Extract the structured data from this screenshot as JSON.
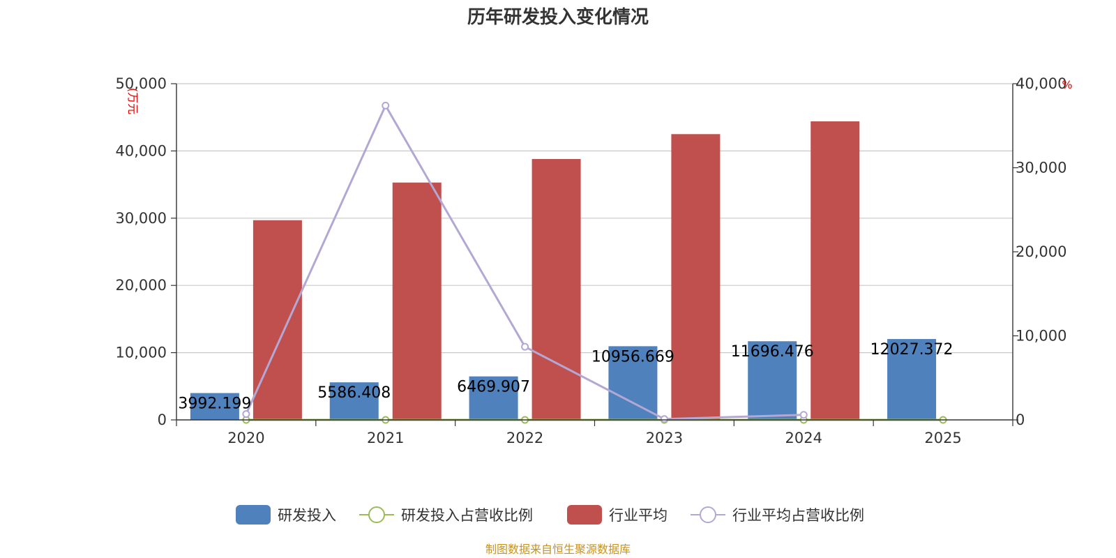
{
  "chart_data": {
    "type": "bar",
    "title": "历年研发投入变化情况",
    "categories": [
      "2020",
      "2021",
      "2022",
      "2023",
      "2024",
      "2025"
    ],
    "left_axis": {
      "unit_label": "(万元",
      "ylim": [
        0,
        50000
      ],
      "ticks": [
        "0",
        "10,000",
        "20,000",
        "30,000",
        "40,000",
        "50,000"
      ]
    },
    "right_axis": {
      "unit_label": "%",
      "ylim": [
        0,
        40000
      ],
      "ticks": [
        "0",
        "10,000",
        "20,000",
        "30,000",
        "40,000"
      ]
    },
    "series": [
      {
        "name": "研发投入",
        "type": "bar",
        "axis": "left",
        "color": "#4f81bd",
        "values": [
          3992.199,
          5586.408,
          6469.907,
          10956.669,
          11696.476,
          12027.372
        ],
        "labels": [
          "3992.199",
          "5586.408",
          "6469.907",
          "10956.669",
          "11696.476",
          "12027.372"
        ]
      },
      {
        "name": "研发投入占营收比例",
        "type": "line",
        "axis": "right",
        "color": "#9bbb59",
        "values": [
          0,
          0,
          0,
          0,
          0,
          0
        ]
      },
      {
        "name": "行业平均",
        "type": "bar",
        "axis": "left",
        "color": "#c0504d",
        "values": [
          29700,
          35300,
          38800,
          42500,
          44400,
          null
        ]
      },
      {
        "name": "行业平均占营收比例",
        "type": "line",
        "axis": "right",
        "color": "#b3a8d4",
        "values": [
          700,
          37400,
          8700,
          100,
          600,
          null
        ]
      }
    ],
    "grid": true,
    "legend": "bottom-center"
  },
  "source_note": "制图数据来自恒生聚源数据库"
}
